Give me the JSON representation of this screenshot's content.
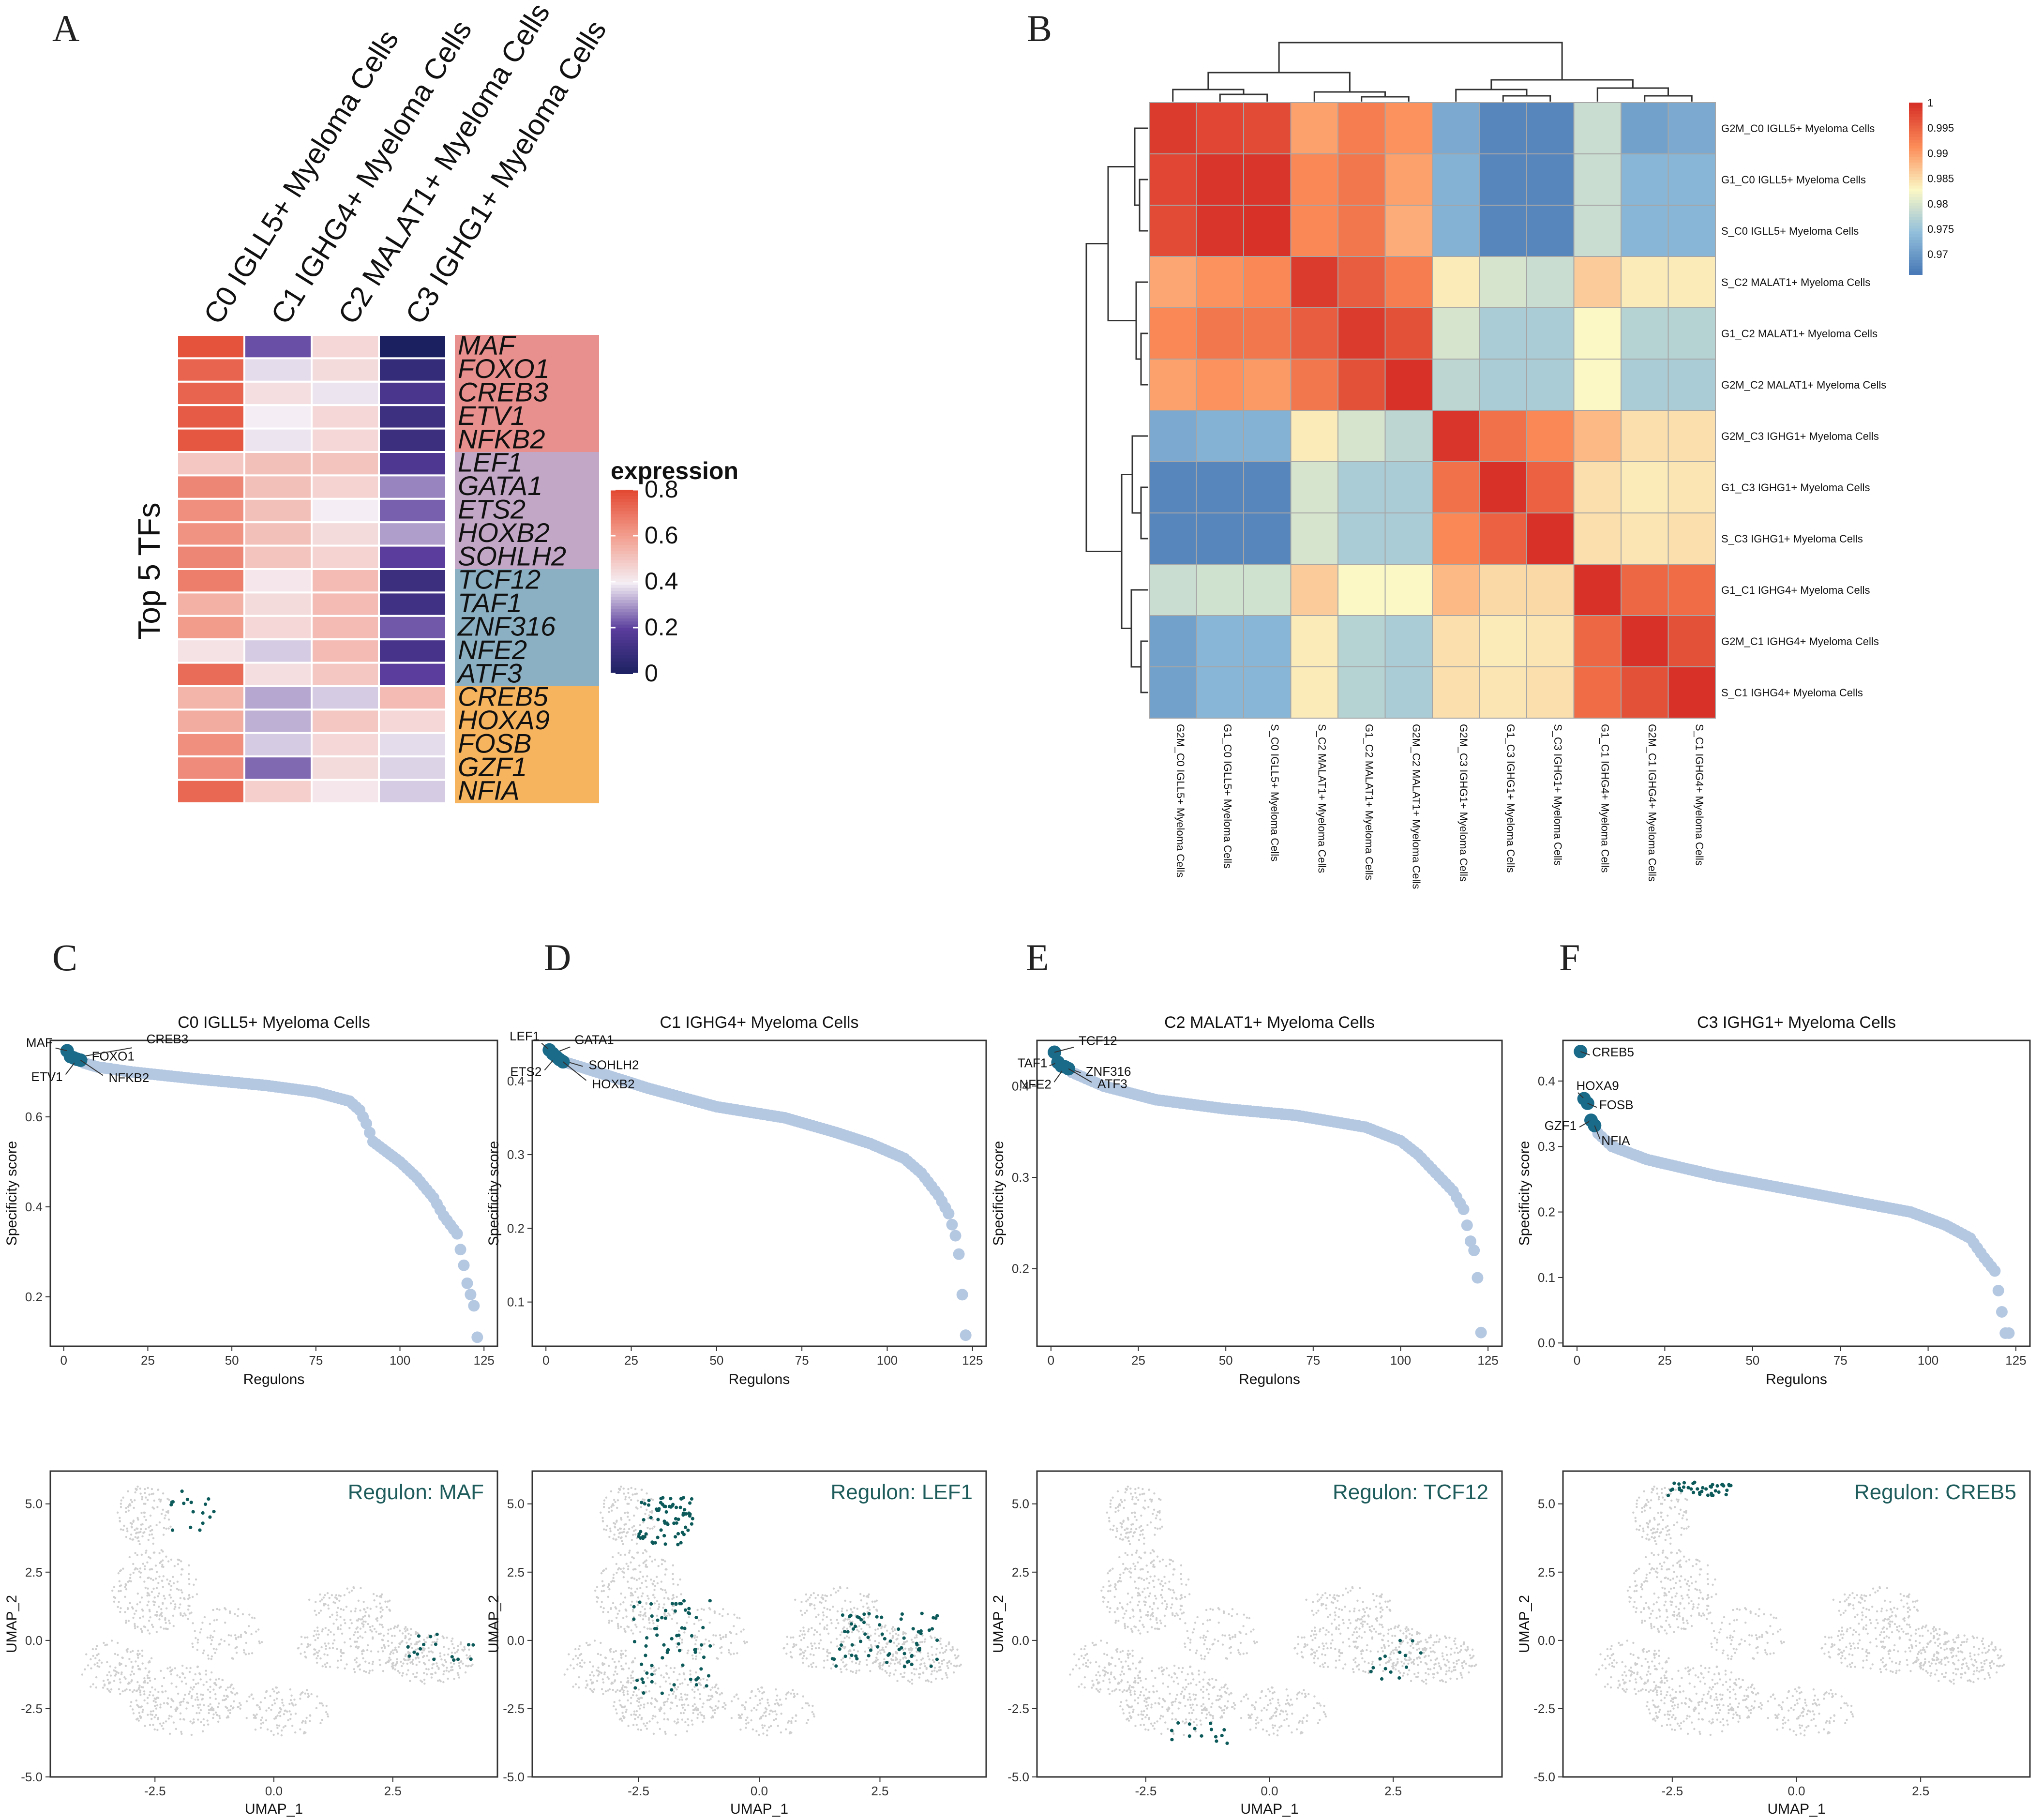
{
  "panel_letters": [
    "A",
    "B",
    "C",
    "D",
    "E",
    "F"
  ],
  "chart_data": [
    {
      "id": "A",
      "type": "heatmap",
      "columns": [
        "C0 IGLL5+ Myeloma Cells",
        "C1 IGHG4+ Myeloma Cells",
        "C2 MALAT1+ Myeloma Cells",
        "C3 IGHG1+ Myeloma Cells"
      ],
      "rows": [
        "MAF",
        "FOXO1",
        "CREB3",
        "ETV1",
        "NFKB2",
        "LEF1",
        "GATA1",
        "ETS2",
        "HOXB2",
        "SOHLH2",
        "TCF12",
        "TAF1",
        "ZNF316",
        "NFE2",
        "ATF3",
        "CREB5",
        "HOXA9",
        "FOSB",
        "GZF1",
        "NFIA"
      ],
      "row_groups": [
        {
          "color": "#e7908e",
          "rows": 5
        },
        {
          "color": "#c3a7c7",
          "rows": 5
        },
        {
          "color": "#8bb0c3",
          "rows": 5
        },
        {
          "color": "#f6b45e",
          "rows": 5
        }
      ],
      "values": [
        [
          0.78,
          0.22,
          0.46,
          0.0
        ],
        [
          0.74,
          0.38,
          0.45,
          0.08
        ],
        [
          0.74,
          0.44,
          0.39,
          0.15
        ],
        [
          0.76,
          0.4,
          0.46,
          0.11
        ],
        [
          0.77,
          0.39,
          0.46,
          0.1
        ],
        [
          0.5,
          0.52,
          0.51,
          0.16
        ],
        [
          0.66,
          0.52,
          0.47,
          0.28
        ],
        [
          0.64,
          0.52,
          0.4,
          0.24
        ],
        [
          0.63,
          0.52,
          0.45,
          0.31
        ],
        [
          0.66,
          0.51,
          0.47,
          0.2
        ],
        [
          0.68,
          0.42,
          0.53,
          0.1
        ],
        [
          0.56,
          0.45,
          0.53,
          0.12
        ],
        [
          0.61,
          0.46,
          0.53,
          0.23
        ],
        [
          0.43,
          0.36,
          0.53,
          0.14
        ],
        [
          0.72,
          0.44,
          0.5,
          0.2
        ],
        [
          0.55,
          0.32,
          0.36,
          0.53
        ],
        [
          0.57,
          0.33,
          0.5,
          0.46
        ],
        [
          0.64,
          0.36,
          0.46,
          0.38
        ],
        [
          0.65,
          0.25,
          0.45,
          0.37
        ],
        [
          0.73,
          0.48,
          0.42,
          0.36
        ]
      ],
      "ylabel": "Top 5 TFs",
      "legend": {
        "title": "expression",
        "ticks": [
          0,
          0.2,
          0.4,
          0.6,
          0.8
        ],
        "range": [
          0,
          0.8
        ]
      }
    },
    {
      "id": "B",
      "type": "heatmap",
      "labels": [
        "G2M_C0 IGLL5+ Myeloma Cells",
        "G1_C0 IGLL5+ Myeloma Cells",
        "S_C0 IGLL5+ Myeloma Cells",
        "S_C2 MALAT1+ Myeloma Cells",
        "G1_C2 MALAT1+ Myeloma Cells",
        "G2M_C2 MALAT1+ Myeloma Cells",
        "G2M_C3 IGHG1+ Myeloma Cells",
        "G1_C3 IGHG1+ Myeloma Cells",
        "S_C3 IGHG1+ Myeloma Cells",
        "G1_C1 IGHG4+ Myeloma Cells",
        "G2M_C1 IGHG4+ Myeloma Cells",
        "S_C1 IGHG4+ Myeloma Cells"
      ],
      "values": [
        [
          0.999,
          0.998,
          0.9975,
          0.99,
          0.993,
          0.991,
          0.972,
          0.968,
          0.968,
          0.979,
          0.971,
          0.972
        ],
        [
          0.998,
          0.9995,
          0.9995,
          0.992,
          0.9935,
          0.99,
          0.973,
          0.968,
          0.968,
          0.979,
          0.9735,
          0.9735
        ],
        [
          0.9975,
          0.9995,
          0.9998,
          0.992,
          0.9935,
          0.989,
          0.973,
          0.968,
          0.968,
          0.979,
          0.9735,
          0.9735
        ],
        [
          0.9895,
          0.991,
          0.992,
          0.999,
          0.996,
          0.993,
          0.984,
          0.98,
          0.979,
          0.9865,
          0.984,
          0.984
        ],
        [
          0.992,
          0.9935,
          0.9935,
          0.996,
          0.999,
          0.997,
          0.98,
          0.9765,
          0.9765,
          0.983,
          0.9775,
          0.9775
        ],
        [
          0.99,
          0.991,
          0.9905,
          0.9935,
          0.997,
          0.9998,
          0.978,
          0.9765,
          0.9765,
          0.983,
          0.9765,
          0.9765
        ],
        [
          0.972,
          0.973,
          0.973,
          0.984,
          0.98,
          0.978,
          0.9995,
          0.994,
          0.992,
          0.988,
          0.985,
          0.985
        ],
        [
          0.968,
          0.968,
          0.968,
          0.98,
          0.9765,
          0.9765,
          0.994,
          0.9998,
          0.9955,
          0.985,
          0.984,
          0.9845
        ],
        [
          0.968,
          0.968,
          0.968,
          0.98,
          0.9765,
          0.9765,
          0.992,
          0.9955,
          0.9998,
          0.985,
          0.9845,
          0.985
        ],
        [
          0.979,
          0.9795,
          0.9795,
          0.9865,
          0.983,
          0.983,
          0.988,
          0.9855,
          0.9855,
          0.9998,
          0.995,
          0.9945
        ],
        [
          0.971,
          0.9735,
          0.9735,
          0.984,
          0.9775,
          0.9765,
          0.985,
          0.984,
          0.9845,
          0.995,
          0.9998,
          0.997
        ],
        [
          0.971,
          0.9735,
          0.9735,
          0.984,
          0.9775,
          0.9765,
          0.985,
          0.9845,
          0.985,
          0.9945,
          0.997,
          0.9998
        ]
      ],
      "legend": {
        "ticks": [
          "1",
          "0.995",
          "0.99",
          "0.985",
          "0.98",
          "0.975",
          "0.97"
        ],
        "range": [
          0.966,
          1.0
        ]
      }
    },
    {
      "id": "C",
      "type": "scatter",
      "title": "C0 IGLL5+ Myeloma Cells",
      "xlabel": "Regulons",
      "ylabel": "Specificity score",
      "xlim": [
        -4,
        129
      ],
      "ylim": [
        0.09,
        0.77
      ],
      "xticks": [
        0,
        25,
        50,
        75,
        100,
        125
      ],
      "yticks": [
        0.2,
        0.4,
        0.6
      ],
      "n": 124,
      "curve": [
        [
          0,
          0.747
        ],
        [
          5,
          0.722
        ],
        [
          10,
          0.711
        ],
        [
          20,
          0.7
        ],
        [
          40,
          0.684
        ],
        [
          60,
          0.67
        ],
        [
          75,
          0.655
        ],
        [
          85,
          0.635
        ],
        [
          88,
          0.615
        ],
        [
          90,
          0.585
        ],
        [
          92,
          0.545
        ],
        [
          100,
          0.5
        ],
        [
          105,
          0.465
        ],
        [
          110,
          0.42
        ],
        [
          113,
          0.38
        ],
        [
          117,
          0.34
        ],
        [
          119,
          0.27
        ],
        [
          120,
          0.23
        ],
        [
          122,
          0.18
        ],
        [
          123,
          0.11
        ]
      ],
      "highlights": [
        {
          "label": "MAF",
          "x": 1,
          "y": 0.747
        },
        {
          "label": "FOXO1",
          "x": 2,
          "y": 0.734
        },
        {
          "label": "CREB3",
          "x": 3,
          "y": 0.731
        },
        {
          "label": "ETV1",
          "x": 4,
          "y": 0.728
        },
        {
          "label": "NFKB2",
          "x": 5,
          "y": 0.726
        }
      ]
    },
    {
      "id": "D",
      "type": "scatter",
      "title": "C1 IGHG4+ Myeloma Cells",
      "xlabel": "Regulons",
      "ylabel": "Specificity score",
      "xlim": [
        -4,
        129
      ],
      "ylim": [
        0.04,
        0.455
      ],
      "xticks": [
        0,
        25,
        50,
        75,
        100,
        125
      ],
      "yticks": [
        0.1,
        0.2,
        0.3,
        0.4
      ],
      "n": 124,
      "curve": [
        [
          0,
          0.442
        ],
        [
          6,
          0.425
        ],
        [
          15,
          0.412
        ],
        [
          30,
          0.39
        ],
        [
          50,
          0.365
        ],
        [
          70,
          0.35
        ],
        [
          85,
          0.33
        ],
        [
          95,
          0.315
        ],
        [
          105,
          0.295
        ],
        [
          110,
          0.275
        ],
        [
          115,
          0.245
        ],
        [
          118,
          0.22
        ],
        [
          120,
          0.19
        ],
        [
          121,
          0.165
        ],
        [
          123,
          0.055
        ]
      ],
      "highlights": [
        {
          "label": "LEF1",
          "x": 1,
          "y": 0.442
        },
        {
          "label": "GATA1",
          "x": 2,
          "y": 0.437
        },
        {
          "label": "ETS2",
          "x": 3,
          "y": 0.433
        },
        {
          "label": "SOHLH2",
          "x": 4,
          "y": 0.429
        },
        {
          "label": "HOXB2",
          "x": 5,
          "y": 0.426
        }
      ]
    },
    {
      "id": "E",
      "type": "scatter",
      "title": "C2 MALAT1+ Myeloma Cells",
      "xlabel": "Regulons",
      "ylabel": "Specificity score",
      "xlim": [
        -4,
        129
      ],
      "ylim": [
        0.115,
        0.45
      ],
      "xticks": [
        0,
        25,
        50,
        75,
        100,
        125
      ],
      "yticks": [
        0.2,
        0.3,
        0.4
      ],
      "n": 124,
      "curve": [
        [
          0,
          0.437
        ],
        [
          6,
          0.415
        ],
        [
          15,
          0.4
        ],
        [
          30,
          0.385
        ],
        [
          50,
          0.375
        ],
        [
          70,
          0.368
        ],
        [
          90,
          0.355
        ],
        [
          100,
          0.34
        ],
        [
          105,
          0.325
        ],
        [
          110,
          0.305
        ],
        [
          115,
          0.285
        ],
        [
          118,
          0.265
        ],
        [
          120,
          0.23
        ],
        [
          121,
          0.22
        ],
        [
          122,
          0.19
        ],
        [
          123,
          0.13
        ]
      ],
      "highlights": [
        {
          "label": "TCF12",
          "x": 1,
          "y": 0.437
        },
        {
          "label": "TAF1",
          "x": 2,
          "y": 0.426
        },
        {
          "label": "ZNF316",
          "x": 3,
          "y": 0.422
        },
        {
          "label": "NFE2",
          "x": 4,
          "y": 0.421
        },
        {
          "label": "ATF3",
          "x": 5,
          "y": 0.419
        }
      ]
    },
    {
      "id": "F",
      "type": "scatter",
      "title": "C3 IGHG1+ Myeloma Cells",
      "xlabel": "Regulons",
      "ylabel": "Specificity score",
      "xlim": [
        -4,
        129
      ],
      "ylim": [
        -0.005,
        0.462
      ],
      "xticks": [
        0,
        25,
        50,
        75,
        100,
        125
      ],
      "yticks": [
        0.0,
        0.1,
        0.2,
        0.3,
        0.4
      ],
      "n": 124,
      "curve": [
        [
          0,
          0.445
        ],
        [
          2,
          0.37
        ],
        [
          4,
          0.34
        ],
        [
          6,
          0.32
        ],
        [
          10,
          0.3
        ],
        [
          20,
          0.28
        ],
        [
          40,
          0.255
        ],
        [
          60,
          0.235
        ],
        [
          80,
          0.215
        ],
        [
          95,
          0.2
        ],
        [
          105,
          0.18
        ],
        [
          112,
          0.16
        ],
        [
          116,
          0.13
        ],
        [
          119,
          0.11
        ],
        [
          120,
          0.08
        ],
        [
          122,
          0.015
        ]
      ],
      "highlights": [
        {
          "label": "CREB5",
          "x": 1,
          "y": 0.445
        },
        {
          "label": "HOXA9",
          "x": 2,
          "y": 0.373
        },
        {
          "label": "FOSB",
          "x": 3,
          "y": 0.366
        },
        {
          "label": "GZF1",
          "x": 4,
          "y": 0.34
        },
        {
          "label": "NFIA",
          "x": 5,
          "y": 0.332
        }
      ]
    },
    {
      "id": "C-umap",
      "type": "scatter",
      "title": "Regulon: MAF",
      "xlabel": "UMAP_1",
      "ylabel": "UMAP_2",
      "xlim": [
        -4.7,
        4.7
      ],
      "ylim": [
        -5.0,
        6.2
      ],
      "xticks": [
        -2.5,
        0.0,
        2.5
      ],
      "yticks": [
        -5.0,
        -2.5,
        0.0,
        2.5,
        5.0
      ],
      "highlight_regions": [
        [
          2.8,
          -0.8,
          1.4,
          1.1
        ],
        [
          -2.2,
          4.0,
          1.0,
          1.5
        ]
      ],
      "highlight_count": 34
    },
    {
      "id": "D-umap",
      "type": "scatter",
      "title": "Regulon: LEF1",
      "xlabel": "UMAP_1",
      "ylabel": "UMAP_2",
      "xlim": [
        -4.7,
        4.7
      ],
      "ylim": [
        -5.0,
        6.2
      ],
      "xticks": [
        -2.5,
        0.0,
        2.5
      ],
      "yticks": [
        -5.0,
        -2.5,
        0.0,
        2.5,
        5.0
      ],
      "highlight_regions": [
        [
          -2.6,
          -2.0,
          1.6,
          3.5
        ],
        [
          1.5,
          -1.0,
          2.2,
          2.0
        ],
        [
          -2.5,
          3.5,
          1.2,
          1.8
        ]
      ],
      "highlight_count": 210
    },
    {
      "id": "E-umap",
      "type": "scatter",
      "title": "Regulon: TCF12",
      "xlabel": "UMAP_1",
      "ylabel": "UMAP_2",
      "xlim": [
        -4.7,
        4.7
      ],
      "ylim": [
        -5.0,
        6.2
      ],
      "xticks": [
        -2.5,
        0.0,
        2.5
      ],
      "yticks": [
        -5.0,
        -2.5,
        0.0,
        2.5,
        5.0
      ],
      "highlight_regions": [
        [
          -2.0,
          -3.8,
          1.2,
          0.8
        ],
        [
          2.0,
          -1.5,
          1.5,
          1.5
        ]
      ],
      "highlight_count": 28
    },
    {
      "id": "F-umap",
      "type": "scatter",
      "title": "Regulon: CREB5",
      "xlabel": "UMAP_1",
      "ylabel": "UMAP_2",
      "xlim": [
        -4.7,
        4.7
      ],
      "ylim": [
        -5.0,
        6.2
      ],
      "xticks": [
        -2.5,
        0.0,
        2.5
      ],
      "yticks": [
        -5.0,
        -2.5,
        0.0,
        2.5,
        5.0
      ],
      "highlight_regions": [
        [
          -2.6,
          5.3,
          1.3,
          0.5
        ]
      ],
      "highlight_count": 40
    }
  ]
}
